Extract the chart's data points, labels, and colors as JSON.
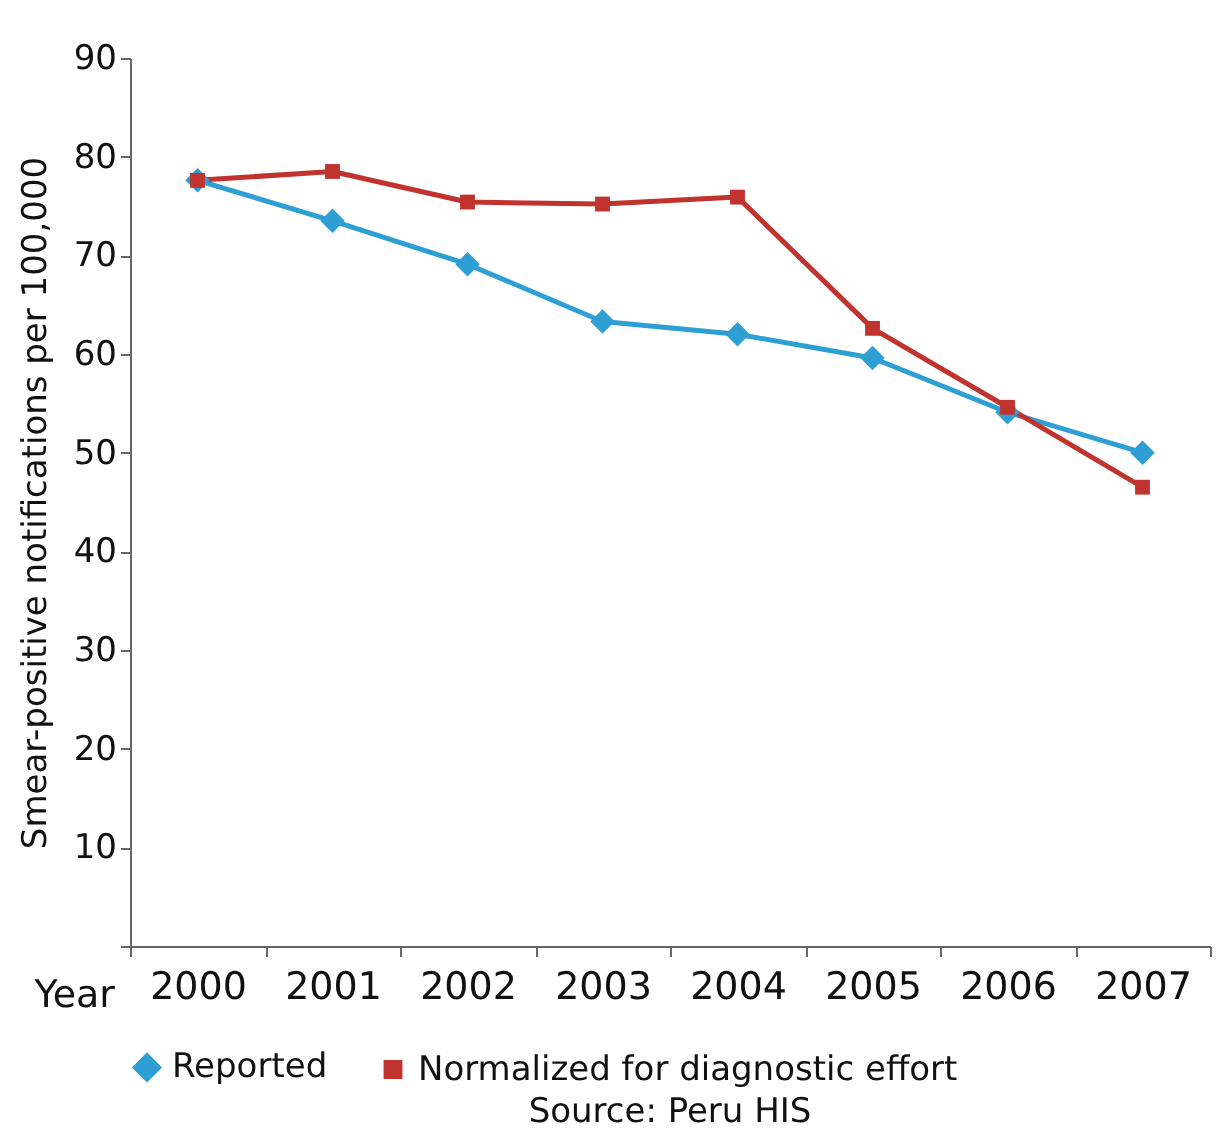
{
  "chart_data": {
    "type": "line",
    "xlabel": "Year",
    "ylabel": "Smear-positive notifications per 100,000",
    "categories": [
      "2000",
      "2001",
      "2002",
      "2003",
      "2004",
      "2005",
      "2006",
      "2007"
    ],
    "series": [
      {
        "name": "Reported",
        "color": "#2e9fd4",
        "marker": "diamond",
        "values": [
          77.6,
          73.5,
          69.1,
          63.3,
          62.0,
          59.6,
          54.1,
          50.0
        ]
      },
      {
        "name": "Normalized for diagnostic effort",
        "color": "#c0332f",
        "marker": "square",
        "values": [
          77.6,
          78.5,
          75.4,
          75.2,
          75.9,
          62.6,
          54.6,
          46.5
        ]
      }
    ],
    "ylim": [
      0,
      90
    ],
    "yticks": [
      {
        "value": 0,
        "label": null
      },
      10,
      20,
      30,
      40,
      50,
      60,
      70,
      80,
      90
    ],
    "grid": false,
    "legend": "bottom",
    "annotations": [
      "Source: Peru HIS"
    ]
  }
}
